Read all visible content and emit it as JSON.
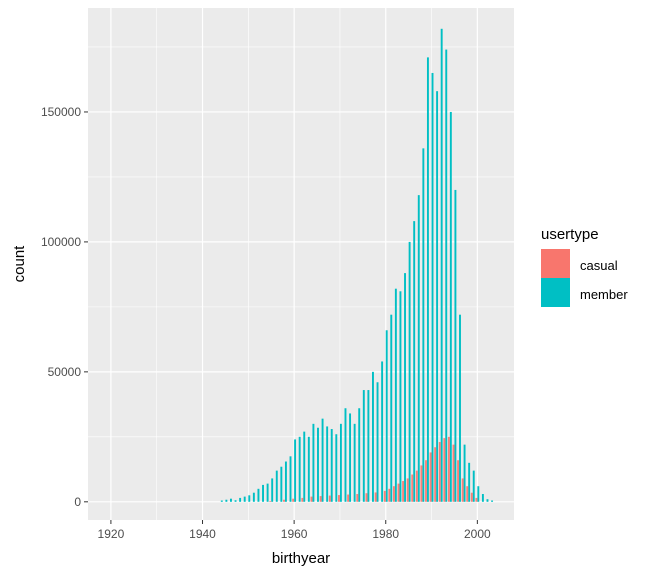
{
  "chart_data": {
    "type": "bar",
    "xlabel": "birthyear",
    "ylabel": "count",
    "xlim": [
      1915,
      2008
    ],
    "ylim": [
      -7000,
      190000
    ],
    "x_ticks": [
      1920,
      1940,
      1960,
      1980,
      2000
    ],
    "y_ticks": [
      0,
      50000,
      100000,
      150000
    ],
    "grid": true,
    "legend": {
      "title": "usertype",
      "position": "right",
      "entries": [
        "casual",
        "member"
      ]
    },
    "colors": {
      "casual": "#F8766D",
      "member": "#00BFC4",
      "panel": "#EBEBEB"
    },
    "series": [
      {
        "name": "member",
        "x": [
          1944,
          1945,
          1946,
          1947,
          1948,
          1949,
          1950,
          1951,
          1952,
          1953,
          1954,
          1955,
          1956,
          1957,
          1958,
          1959,
          1960,
          1961,
          1962,
          1963,
          1964,
          1965,
          1966,
          1967,
          1968,
          1969,
          1970,
          1971,
          1972,
          1973,
          1974,
          1975,
          1976,
          1977,
          1978,
          1979,
          1980,
          1981,
          1982,
          1983,
          1984,
          1985,
          1986,
          1987,
          1988,
          1989,
          1990,
          1991,
          1992,
          1993,
          1994,
          1995,
          1996,
          1997,
          1998,
          1999,
          2000,
          2001,
          2002,
          2003
        ],
        "values": [
          500,
          800,
          1200,
          600,
          1500,
          2000,
          2500,
          3500,
          5000,
          6500,
          7000,
          9000,
          12000,
          13500,
          15500,
          17500,
          24000,
          25000,
          27000,
          25000,
          30000,
          28500,
          32000,
          29000,
          28000,
          26000,
          30000,
          36000,
          34000,
          30000,
          36000,
          43000,
          43000,
          50000,
          46000,
          54000,
          66000,
          72000,
          82000,
          81000,
          88000,
          100000,
          108000,
          118000,
          136000,
          171000,
          165000,
          158000,
          182000,
          174000,
          150000,
          120000,
          72000,
          22000,
          15000,
          12000,
          6000,
          3000,
          1000,
          500
        ]
      },
      {
        "name": "casual",
        "x": [
          1955,
          1958,
          1960,
          1962,
          1964,
          1966,
          1968,
          1970,
          1972,
          1974,
          1976,
          1978,
          1980,
          1981,
          1982,
          1983,
          1984,
          1985,
          1986,
          1987,
          1988,
          1989,
          1990,
          1991,
          1992,
          1993,
          1994,
          1995,
          1996,
          1997,
          1998,
          1999,
          2000
        ],
        "values": [
          300,
          800,
          1200,
          1500,
          2000,
          2200,
          2400,
          2600,
          2800,
          3000,
          3300,
          3600,
          4200,
          5000,
          6000,
          7000,
          8000,
          9000,
          10500,
          12000,
          14000,
          16000,
          19000,
          21000,
          23000,
          24500,
          25000,
          22000,
          16000,
          9000,
          6000,
          3500,
          1500
        ]
      }
    ]
  }
}
